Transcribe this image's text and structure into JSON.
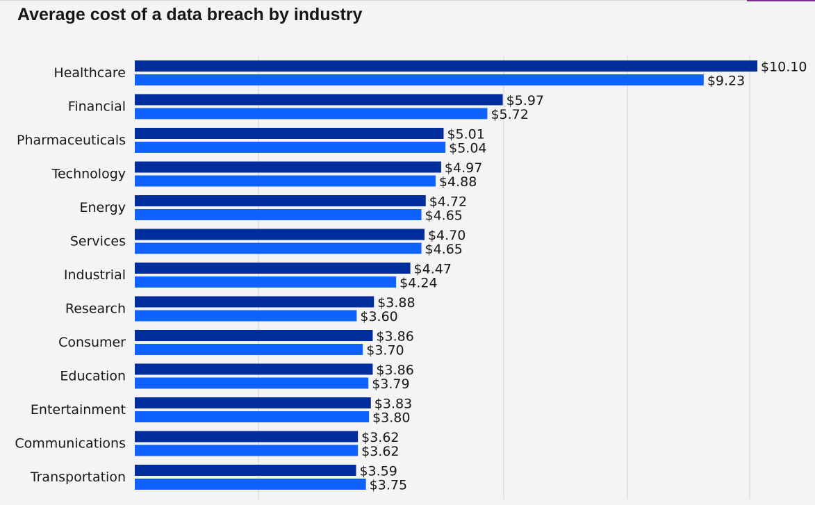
{
  "chart_data": {
    "type": "bar",
    "orientation": "horizontal",
    "title": "Average cost of a data breach by industry",
    "xlabel": "",
    "ylabel": "",
    "value_prefix": "$",
    "xlim": [
      0,
      10.1
    ],
    "grid": true,
    "categories": [
      "Healthcare",
      "Financial",
      "Pharmaceuticals",
      "Technology",
      "Energy",
      "Services",
      "Industrial",
      "Research",
      "Consumer",
      "Education",
      "Entertainment",
      "Communications",
      "Transportation"
    ],
    "series": [
      {
        "color": "#002d9c",
        "values": [
          10.1,
          5.97,
          5.01,
          4.97,
          4.72,
          4.7,
          4.47,
          3.88,
          3.86,
          3.86,
          3.83,
          3.62,
          3.59
        ],
        "labels": [
          "$10.10",
          "$5.97",
          "$5.01",
          "$4.97",
          "$4.72",
          "$4.70",
          "$4.47",
          "$3.88",
          "$3.86",
          "$3.86",
          "$3.83",
          "$3.62",
          "$3.59"
        ]
      },
      {
        "color": "#0f62fe",
        "values": [
          9.23,
          5.72,
          5.04,
          4.88,
          4.65,
          4.65,
          4.24,
          3.6,
          3.7,
          3.79,
          3.8,
          3.62,
          3.75
        ],
        "labels": [
          "$9.23",
          "$5.72",
          "$5.04",
          "$4.88",
          "$4.65",
          "$4.65",
          "$4.24",
          "$3.60",
          "$3.70",
          "$3.79",
          "$3.80",
          "$3.62",
          "$3.75"
        ]
      }
    ]
  }
}
